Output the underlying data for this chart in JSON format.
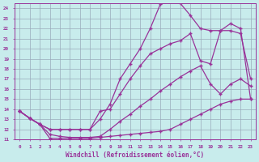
{
  "xlabel": "Windchill (Refroidissement éolien,°C)",
  "xlim": [
    -0.5,
    23.5
  ],
  "ylim": [
    11,
    24.5
  ],
  "xticks": [
    0,
    1,
    2,
    3,
    4,
    5,
    6,
    7,
    8,
    9,
    10,
    11,
    12,
    13,
    14,
    15,
    16,
    17,
    18,
    19,
    20,
    21,
    22,
    23
  ],
  "yticks": [
    11,
    12,
    13,
    14,
    15,
    16,
    17,
    18,
    19,
    20,
    21,
    22,
    23,
    24
  ],
  "bg_color": "#c8ecec",
  "grid_color": "#99aabb",
  "line_color": "#993399",
  "line1_x": [
    0,
    1,
    2,
    3,
    4,
    5,
    6,
    7,
    8,
    9,
    10,
    11,
    12,
    13,
    14,
    15,
    16,
    17,
    18,
    19,
    20,
    21,
    22,
    23
  ],
  "line1_y": [
    13.8,
    13.1,
    12.5,
    11.1,
    11.1,
    11.1,
    11.1,
    11.1,
    11.2,
    11.3,
    11.4,
    11.5,
    11.6,
    11.7,
    11.8,
    12.0,
    12.5,
    13.0,
    13.5,
    14.0,
    14.5,
    14.8,
    15.0,
    15.0
  ],
  "line2_x": [
    0,
    1,
    2,
    3,
    4,
    5,
    6,
    7,
    8,
    9,
    10,
    11,
    12,
    13,
    14,
    15,
    16,
    17,
    18,
    19,
    20,
    21,
    22,
    23
  ],
  "line2_y": [
    13.8,
    13.1,
    12.5,
    11.5,
    11.3,
    11.2,
    11.2,
    11.2,
    11.3,
    12.0,
    12.8,
    13.5,
    14.3,
    15.0,
    15.8,
    16.5,
    17.2,
    17.8,
    18.3,
    16.5,
    15.5,
    16.5,
    17.0,
    16.3
  ],
  "line3_x": [
    0,
    1,
    2,
    3,
    4,
    5,
    6,
    7,
    8,
    9,
    10,
    11,
    12,
    13,
    14,
    15,
    16,
    17,
    18,
    19,
    20,
    21,
    22,
    23
  ],
  "line3_y": [
    13.8,
    13.1,
    12.5,
    12.0,
    12.0,
    12.0,
    12.0,
    12.0,
    13.0,
    14.5,
    17.0,
    18.5,
    20.0,
    22.0,
    24.4,
    24.7,
    24.5,
    23.3,
    22.0,
    21.8,
    21.8,
    21.8,
    21.5,
    17.0
  ],
  "line4_x": [
    0,
    1,
    2,
    3,
    4,
    5,
    6,
    7,
    8,
    9,
    10,
    11,
    12,
    13,
    14,
    15,
    16,
    17,
    18,
    19,
    20,
    21,
    22,
    23
  ],
  "line4_y": [
    13.8,
    13.1,
    12.5,
    12.0,
    12.0,
    12.0,
    12.0,
    12.0,
    13.8,
    14.0,
    15.5,
    17.0,
    18.3,
    19.5,
    20.0,
    20.5,
    20.8,
    21.5,
    18.8,
    18.5,
    21.8,
    22.5,
    22.0,
    15.0
  ]
}
